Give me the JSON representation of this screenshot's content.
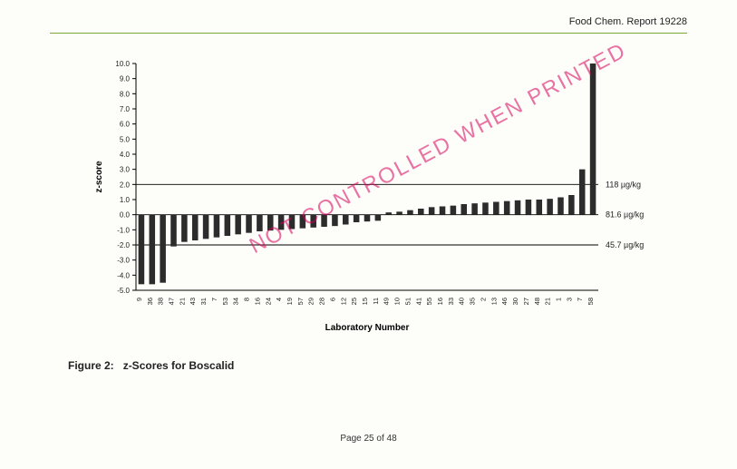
{
  "header": {
    "report_label": "Food Chem. Report 19228"
  },
  "footer": {
    "page_label": "Page 25 of 48"
  },
  "watermark": {
    "text": "NOT CONTROLLED WHEN PRINTED"
  },
  "caption": {
    "prefix": "Figure 2:",
    "title": "z-Scores for Boscalid"
  },
  "chart": {
    "type": "bar",
    "ylabel": "z-score",
    "xlabel": "Laboratory Number",
    "ylim": [
      -5.0,
      10.0
    ],
    "ytick_step": 1.0,
    "bar_color": "#2c2c2c",
    "axis_color": "#000000",
    "tick_fontsize": 8,
    "label_fontsize": 10,
    "annotation_fontsize": 9,
    "background_color": "#fdfdfa",
    "reference_lines": [
      {
        "y": 2.0,
        "label": "118 µg/kg"
      },
      {
        "y": 0.0,
        "label": "81.6 µg/kg"
      },
      {
        "y": -2.0,
        "label": "45.7 µg/kg"
      }
    ],
    "yticks": [
      -5,
      -4,
      -3,
      -2,
      -1,
      0,
      1,
      2,
      3,
      4,
      5,
      6,
      7,
      8,
      9,
      10
    ],
    "categories": [
      "9",
      "36",
      "38",
      "47",
      "21",
      "43",
      "31",
      "7",
      "53",
      "34",
      "8",
      "16",
      "24",
      "4",
      "19",
      "57",
      "29",
      "28",
      "6",
      "12",
      "25",
      "15",
      "11",
      "49",
      "10",
      "51",
      "41",
      "55",
      "16",
      "33",
      "40",
      "35",
      "2",
      "13",
      "46",
      "30",
      "27",
      "48",
      "21",
      "1",
      "3",
      "7",
      "58"
    ],
    "values": [
      -4.6,
      -4.6,
      -4.5,
      -2.1,
      -1.8,
      -1.7,
      -1.6,
      -1.5,
      -1.4,
      -1.3,
      -1.2,
      -1.1,
      -1.05,
      -1.0,
      -0.95,
      -0.9,
      -0.85,
      -0.8,
      -0.75,
      -0.65,
      -0.5,
      -0.45,
      -0.4,
      0.15,
      0.2,
      0.3,
      0.4,
      0.5,
      0.55,
      0.6,
      0.7,
      0.75,
      0.8,
      0.85,
      0.9,
      0.95,
      1.0,
      1.0,
      1.05,
      1.15,
      1.3,
      3.0,
      10.0
    ]
  }
}
